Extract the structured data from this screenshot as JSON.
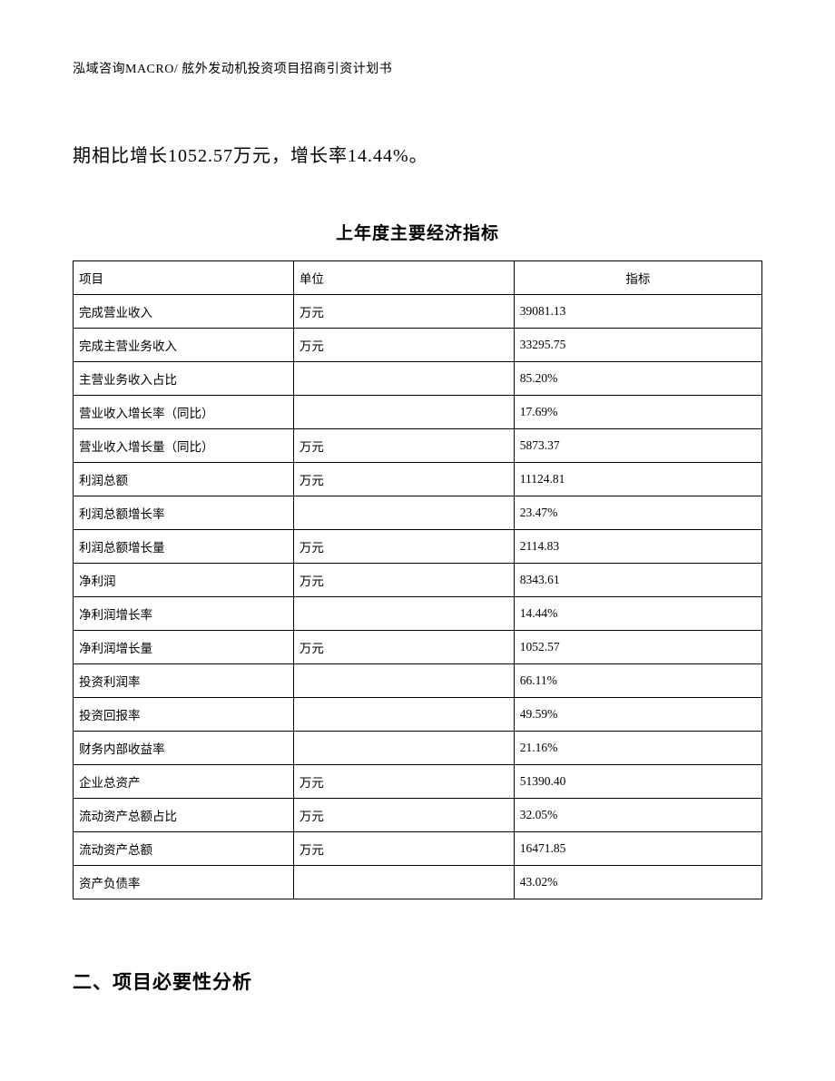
{
  "header": {
    "text": "泓域咨询MACRO/ 舷外发动机投资项目招商引资计划书"
  },
  "body_paragraph": "期相比增长1052.57万元，增长率14.44%。",
  "table": {
    "title": "上年度主要经济指标",
    "columns": [
      "项目",
      "单位",
      "指标"
    ],
    "rows": [
      [
        "完成营业收入",
        "万元",
        "39081.13"
      ],
      [
        "完成主营业务收入",
        "万元",
        "33295.75"
      ],
      [
        "主营业务收入占比",
        "",
        "85.20%"
      ],
      [
        "营业收入增长率（同比）",
        "",
        "17.69%"
      ],
      [
        "营业收入增长量（同比）",
        "万元",
        "5873.37"
      ],
      [
        "利润总额",
        "万元",
        "11124.81"
      ],
      [
        "利润总额增长率",
        "",
        "23.47%"
      ],
      [
        "利润总额增长量",
        "万元",
        "2114.83"
      ],
      [
        "净利润",
        "万元",
        "8343.61"
      ],
      [
        "净利润增长率",
        "",
        "14.44%"
      ],
      [
        "净利润增长量",
        "万元",
        "1052.57"
      ],
      [
        "投资利润率",
        "",
        "66.11%"
      ],
      [
        "投资回报率",
        "",
        "49.59%"
      ],
      [
        "财务内部收益率",
        "",
        "21.16%"
      ],
      [
        "企业总资产",
        "万元",
        "51390.40"
      ],
      [
        "流动资产总额占比",
        "万元",
        "32.05%"
      ],
      [
        "流动资产总额",
        "万元",
        "16471.85"
      ],
      [
        "资产负债率",
        "",
        "43.02%"
      ]
    ]
  },
  "section_heading": "二、项目必要性分析"
}
